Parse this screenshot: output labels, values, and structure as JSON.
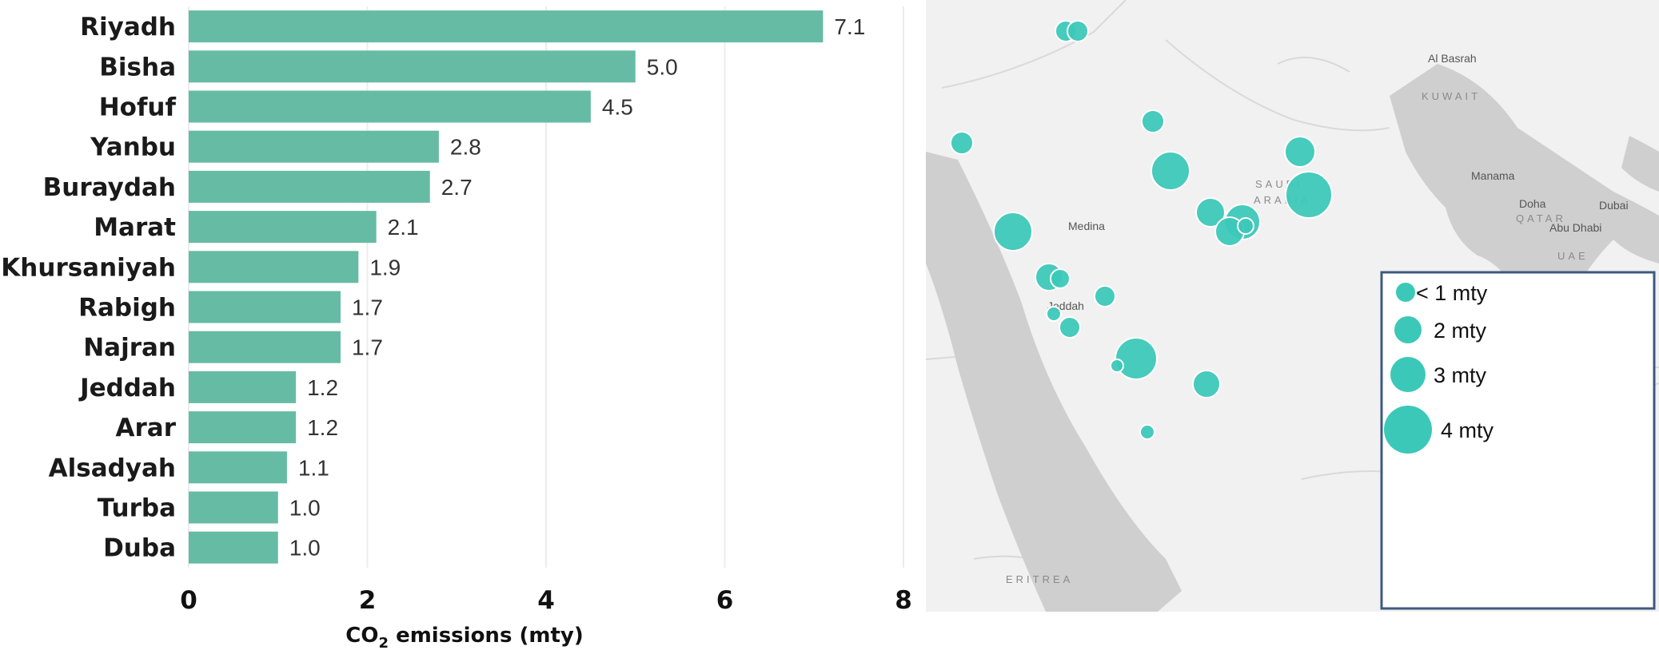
{
  "chart_data": {
    "type": "bar",
    "orientation": "horizontal",
    "categories": [
      "Riyadh",
      "Bisha",
      "Hofuf",
      "Yanbu",
      "Buraydah",
      "Marat",
      "Khursaniyah",
      "Rabigh",
      "Najran",
      "Jeddah",
      "Arar",
      "Alsadyah",
      "Turba",
      "Duba"
    ],
    "values": [
      7.1,
      5.0,
      4.5,
      2.8,
      2.7,
      2.1,
      1.9,
      1.7,
      1.7,
      1.2,
      1.2,
      1.1,
      1.0,
      1.0
    ],
    "value_labels": [
      "7.1",
      "5.0",
      "4.5",
      "2.8",
      "2.7",
      "2.1",
      "1.9",
      "1.7",
      "1.7",
      "1.2",
      "1.2",
      "1.1",
      "1.0",
      "1.0"
    ],
    "xlim": [
      0,
      8
    ],
    "xticks": [
      "0",
      "2",
      "4",
      "6",
      "8"
    ],
    "xlabel_main": "CO",
    "xlabel_sub": "2",
    "xlabel_rest": " emissions (mty)",
    "bar_color": "#66bba4",
    "grid": true
  },
  "map": {
    "place_labels": [
      "Al Basrah",
      "KUWAIT",
      "SAUDI",
      "ARABIA",
      "Manama",
      "Doha",
      "QATAR",
      "Dubai",
      "Abu Dhabi",
      "UAE",
      "Medina",
      "Jeddah",
      "ERITREA"
    ],
    "bubble_color": "#3cc8b8",
    "legend": {
      "items": [
        "< 1 mty",
        "2 mty",
        "3 mty",
        "4 mty"
      ],
      "border_color": "#3d5a80"
    }
  }
}
